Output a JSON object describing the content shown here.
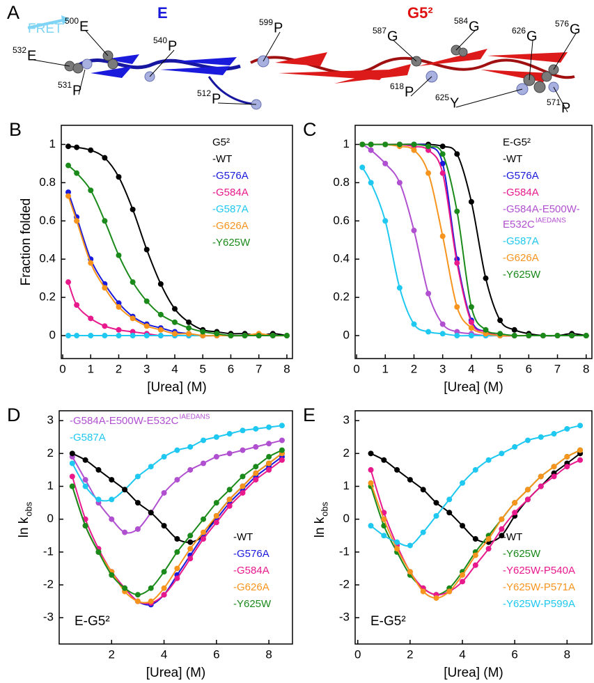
{
  "panel_a": {
    "panel": "A",
    "fret": "FRET",
    "domain_e": "E",
    "domain_g": "G5²",
    "residues": [
      {
        "num": "532",
        "aa": "E"
      },
      {
        "num": "500",
        "aa": "E"
      },
      {
        "num": "540",
        "aa": "P"
      },
      {
        "num": "531",
        "aa": "P"
      },
      {
        "num": "512",
        "aa": "P"
      },
      {
        "num": "599",
        "aa": "P"
      },
      {
        "num": "587",
        "aa": "G"
      },
      {
        "num": "584",
        "aa": "G"
      },
      {
        "num": "626",
        "aa": "G"
      },
      {
        "num": "576",
        "aa": "G"
      },
      {
        "num": "618",
        "aa": "P"
      },
      {
        "num": "625",
        "aa": "Y"
      },
      {
        "num": "571",
        "aa": "P"
      }
    ]
  },
  "chart_data": [
    {
      "type": "line",
      "markers": true,
      "panel": "B",
      "x_label": "[Urea] (M)",
      "y_label": "Fraction folded",
      "legend": "upper right",
      "legend_title": "G5²",
      "x": [
        0.2,
        0.5,
        1,
        1.5,
        2,
        2.5,
        3,
        3.5,
        4,
        4.5,
        5,
        5.5,
        6,
        6.5,
        7,
        7.5,
        8
      ],
      "xlim": [
        -0.05,
        8.2
      ],
      "xticks": [
        0,
        1,
        2,
        3,
        4,
        5,
        6,
        7,
        8
      ],
      "ylim": [
        -0.12,
        1.1
      ],
      "yticks": [
        0,
        0.2,
        0.4,
        0.6,
        0.8,
        1
      ],
      "series": [
        {
          "name": "-WT",
          "color": "#000000",
          "values": [
            0.99,
            0.985,
            0.97,
            0.93,
            0.83,
            0.66,
            0.45,
            0.27,
            0.14,
            0.07,
            0.03,
            0.02,
            0.01,
            0.01,
            0,
            0.01,
            0
          ]
        },
        {
          "name": "-G576A",
          "color": "#1a1adc",
          "values": [
            0.75,
            0.62,
            0.4,
            0.27,
            0.17,
            0.1,
            0.06,
            0.04,
            0.02,
            0.01,
            0,
            0,
            0,
            0,
            0,
            0,
            0
          ]
        },
        {
          "name": "-G584A",
          "color": "#e8198c",
          "values": [
            0.28,
            0.16,
            0.09,
            0.05,
            0.03,
            0.02,
            0.01,
            0,
            0,
            0,
            0,
            0,
            0,
            0,
            0,
            0,
            0
          ]
        },
        {
          "name": "-G587A",
          "color": "#1ec8f0",
          "values": [
            0,
            0,
            0,
            0,
            0,
            0,
            0,
            0,
            0,
            0,
            0,
            0,
            0,
            0,
            0,
            0,
            0
          ]
        },
        {
          "name": "-G626A",
          "color": "#f7941d",
          "values": [
            0.73,
            0.6,
            0.38,
            0.25,
            0.15,
            0.09,
            0.05,
            0.03,
            0.01,
            0.01,
            0,
            0,
            0,
            0,
            0.01,
            0,
            0
          ]
        },
        {
          "name": "-Y625W",
          "color": "#1a8a1a",
          "values": [
            0.89,
            0.85,
            0.76,
            0.6,
            0.42,
            0.28,
            0.18,
            0.11,
            0.07,
            0.04,
            0.02,
            0.01,
            0,
            0,
            0,
            0,
            0
          ]
        }
      ]
    },
    {
      "type": "line",
      "markers": true,
      "panel": "C",
      "x_label": "[Urea] (M)",
      "legend": "upper right",
      "legend_title": "E-G5²",
      "x": [
        0.2,
        0.5,
        1,
        1.5,
        2,
        2.5,
        3,
        3.5,
        4,
        4.5,
        5,
        5.5,
        6,
        6.5,
        7,
        7.5,
        8
      ],
      "xlim": [
        -0.05,
        8.2
      ],
      "xticks": [
        0,
        1,
        2,
        3,
        4,
        5,
        6,
        7,
        8
      ],
      "ylim": [
        -0.12,
        1.1
      ],
      "yticks": [
        0,
        0.2,
        0.4,
        0.6,
        0.8,
        1
      ],
      "series": [
        {
          "name": "-WT",
          "color": "#000000",
          "values": [
            1,
            1,
            1,
            1,
            1,
            1,
            0.99,
            0.95,
            0.7,
            0.3,
            0.08,
            0.03,
            0.01,
            0,
            0,
            0.01,
            0
          ]
        },
        {
          "name": "-G576A",
          "color": "#1a1adc",
          "values": [
            1,
            1,
            1,
            1,
            1,
            0.99,
            0.9,
            0.4,
            0.08,
            0.02,
            0,
            0,
            0,
            0,
            0,
            0,
            0
          ]
        },
        {
          "name": "-G584A",
          "color": "#e8198c",
          "values": [
            1,
            1,
            1,
            1,
            0.99,
            0.97,
            0.85,
            0.38,
            0.07,
            0.02,
            0,
            0,
            0,
            0,
            0,
            0,
            0
          ]
        },
        {
          "name": "-G584A-E500W-E532C",
          "name_sup": "IAEDANS",
          "color": "#b050d0",
          "values": [
            1,
            0.97,
            0.9,
            0.8,
            0.55,
            0.22,
            0.06,
            0.02,
            0.01,
            0,
            0,
            0,
            0,
            0,
            0,
            0,
            0
          ]
        },
        {
          "name": "-G587A",
          "color": "#1ec8f0",
          "values": [
            0.88,
            0.8,
            0.6,
            0.25,
            0.06,
            0.02,
            0.01,
            0,
            0,
            0,
            0,
            0,
            0,
            0,
            0,
            0,
            0
          ]
        },
        {
          "name": "-G626A",
          "color": "#f7941d",
          "values": [
            1,
            1,
            1,
            0.99,
            0.97,
            0.85,
            0.52,
            0.15,
            0.04,
            0.01,
            0,
            0,
            0,
            0,
            0,
            0,
            0
          ]
        },
        {
          "name": "-Y625W",
          "color": "#1a8a1a",
          "values": [
            1,
            1,
            1,
            1,
            1,
            0.99,
            0.95,
            0.65,
            0.15,
            0.03,
            0.01,
            0,
            0,
            0,
            0,
            0,
            0
          ]
        }
      ]
    },
    {
      "type": "line",
      "markers": true,
      "panel": "D",
      "x_label": "[Urea] (M)",
      "y_label": "ln k",
      "y_label_sub": "obs",
      "legend": "lower right",
      "annotation": "E-G5²",
      "x": [
        0.5,
        1,
        1.5,
        2,
        2.5,
        3,
        3.5,
        4,
        4.5,
        5,
        5.5,
        6,
        6.5,
        7,
        7.5,
        8,
        8.5
      ],
      "xlim": [
        0,
        8.9
      ],
      "xticks": [
        2,
        4,
        6,
        8
      ],
      "ylim": [
        -3.8,
        3.3
      ],
      "yticks": [
        -3,
        -2,
        -1,
        0,
        1,
        2,
        3
      ],
      "series": [
        {
          "name": "-G584A-E500W-E532C",
          "name_sup": "IAEDANS",
          "legend": "upper left",
          "color": "#b050d0",
          "values": [
            1.9,
            1.2,
            0.5,
            0,
            -0.4,
            -0.3,
            0.2,
            0.8,
            1.2,
            1.5,
            1.7,
            1.9,
            2,
            2.1,
            2.2,
            2.3,
            2.4
          ]
        },
        {
          "name": "-G587A",
          "legend": "upper left",
          "color": "#1ec8f0",
          "values": [
            1.7,
            1,
            0.6,
            0.6,
            0.9,
            1.3,
            1.6,
            1.9,
            2.1,
            2.2,
            2.4,
            2.5,
            2.6,
            2.7,
            2.75,
            2.8,
            2.85
          ]
        },
        {
          "name": "-WT",
          "color": "#000000",
          "values": [
            2,
            1.8,
            1.5,
            1.2,
            0.9,
            0.5,
            0.2,
            -0.2,
            -0.6,
            -0.7,
            -0.5,
            0.1,
            0.6,
            1,
            1.4,
            1.7,
            2
          ]
        },
        {
          "name": "-G576A",
          "color": "#1a1adc",
          "values": [
            1,
            -0.2,
            -1,
            -1.6,
            -2.1,
            -2.5,
            -2.6,
            -2.3,
            -1.7,
            -1.1,
            -0.5,
            0,
            0.5,
            0.9,
            1.3,
            1.6,
            1.9
          ]
        },
        {
          "name": "-G584A",
          "color": "#e8198c",
          "values": [
            1.3,
            0,
            -0.9,
            -1.6,
            -2.1,
            -2.5,
            -2.55,
            -2.3,
            -1.8,
            -1.2,
            -0.6,
            -0.1,
            0.4,
            0.8,
            1.2,
            1.5,
            1.8
          ]
        },
        {
          "name": "-G626A",
          "color": "#f7941d",
          "values": [
            1,
            -0.2,
            -1,
            -1.6,
            -2.2,
            -2.5,
            -2.5,
            -2.1,
            -1.5,
            -0.9,
            -0.4,
            0.1,
            0.6,
            1,
            1.4,
            1.7,
            2
          ]
        },
        {
          "name": "-Y625W",
          "color": "#1a8a1a",
          "values": [
            1,
            -0.2,
            -1,
            -1.7,
            -2.1,
            -2.3,
            -2.1,
            -1.6,
            -1,
            -0.5,
            0,
            0.5,
            0.9,
            1.3,
            1.6,
            1.9,
            2.1
          ]
        }
      ]
    },
    {
      "type": "line",
      "markers": true,
      "panel": "E",
      "x_label": "[Urea] (M)",
      "y_label": "ln k",
      "y_label_sub": "obs",
      "legend": "lower right",
      "annotation": "E-G5²",
      "x": [
        0.5,
        1,
        1.5,
        2,
        2.5,
        3,
        3.5,
        4,
        4.5,
        5,
        5.5,
        6,
        6.5,
        7,
        7.5,
        8,
        8.5
      ],
      "xlim": [
        -0.1,
        8.95
      ],
      "xticks": [
        0,
        2,
        4,
        6,
        8
      ],
      "ylim": [
        -3.8,
        3.3
      ],
      "yticks": [
        -3,
        -2,
        -1,
        0,
        1,
        2,
        3
      ],
      "series": [
        {
          "name": "-WT",
          "color": "#000000",
          "values": [
            2,
            1.8,
            1.5,
            1.2,
            0.9,
            0.5,
            0.2,
            -0.2,
            -0.6,
            -0.7,
            -0.5,
            0.1,
            0.6,
            1,
            1.4,
            1.7,
            2
          ]
        },
        {
          "name": "-Y625W",
          "color": "#1a8a1a",
          "values": [
            1,
            -0.2,
            -1,
            -1.7,
            -2.1,
            -2.3,
            -2.1,
            -1.6,
            -1,
            -0.5,
            0,
            0.5,
            0.9,
            1.3,
            1.6,
            1.9,
            2.1
          ]
        },
        {
          "name": "-Y625W-P540A",
          "color": "#e8198c",
          "values": [
            1.5,
            0.2,
            -0.8,
            -1.6,
            -2.1,
            -2.3,
            -2.2,
            -1.9,
            -1.4,
            -0.9,
            -0.3,
            0.2,
            0.6,
            1,
            1.3,
            1.6,
            1.8
          ]
        },
        {
          "name": "-Y625W-P571A",
          "color": "#f7941d",
          "values": [
            1.1,
            0,
            -0.9,
            -1.6,
            -2.2,
            -2.4,
            -2.2,
            -1.7,
            -1.1,
            -0.6,
            0,
            0.5,
            0.9,
            1.3,
            1.6,
            1.9,
            2.1
          ]
        },
        {
          "name": "-Y625W-P599A",
          "color": "#1ec8f0",
          "values": [
            -0.2,
            -0.5,
            -0.7,
            -0.8,
            -0.4,
            0.1,
            0.6,
            1.1,
            1.5,
            1.8,
            2,
            2.2,
            2.4,
            2.5,
            2.6,
            2.75,
            2.85
          ]
        }
      ]
    }
  ]
}
